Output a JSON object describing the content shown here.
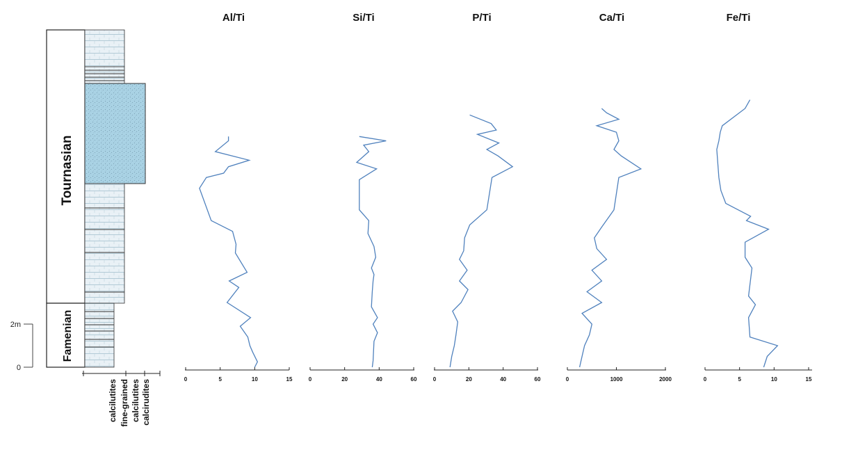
{
  "column": {
    "stages": [
      {
        "name": "Tournasian"
      },
      {
        "name": "Famenian"
      }
    ],
    "scale": {
      "labels": [
        "2m",
        "0"
      ]
    },
    "lithology_labels": [
      "calcilutites",
      "fine-grained calcilutites",
      "calcirudites"
    ],
    "colors": {
      "fill": "#a9d2e4",
      "hatch": "#e8f1f6",
      "line": "#333333"
    }
  },
  "chart_data": [
    {
      "type": "line",
      "title": "Al/Ti",
      "xlim": [
        0,
        15
      ],
      "xticks": [
        "0",
        "5",
        "10",
        "15"
      ],
      "x": [
        10,
        10.4,
        9.7,
        9.3,
        9.0,
        7.9,
        9.4,
        6.0,
        7.7,
        6.3,
        8.9,
        7.2,
        7.3,
        6.8,
        3.7,
        2.0,
        3.0,
        5.5,
        6.2,
        9.2,
        4.3,
        6.2,
        6.2
      ],
      "y_depth_m": [
        0,
        0.25,
        0.7,
        1.0,
        1.4,
        1.9,
        2.3,
        3.0,
        3.7,
        4.0,
        4.4,
        5.3,
        5.7,
        6.3,
        6.8,
        8.3,
        8.8,
        9.0,
        9.3,
        9.6,
        10.0,
        10.5,
        10.7
      ],
      "line_color": "#4f81bd"
    },
    {
      "type": "line",
      "title": "Si/Ti",
      "xlim": [
        0,
        60
      ],
      "xticks": [
        "0",
        "20",
        "40",
        "60"
      ],
      "x": [
        36,
        36.5,
        37,
        39,
        36.5,
        39,
        35.5,
        36,
        36.5,
        37,
        35.5,
        38,
        37,
        33.5,
        34,
        28.5,
        28.5,
        38.5,
        27,
        34,
        31,
        44,
        28.5
      ],
      "y_depth_m": [
        0,
        0.3,
        1.2,
        1.6,
        2.0,
        2.3,
        2.8,
        3.5,
        4.0,
        4.3,
        4.6,
        5.1,
        5.6,
        6.2,
        6.8,
        7.3,
        8.7,
        9.2,
        9.5,
        10.0,
        10.3,
        10.5,
        10.7
      ],
      "line_color": "#4f81bd"
    },
    {
      "type": "line",
      "title": "P/Ti",
      "xlim": [
        0,
        60
      ],
      "xticks": [
        "0",
        "20",
        "40",
        "60"
      ],
      "x": [
        9,
        10,
        11.5,
        12.5,
        13.5,
        10.5,
        15.5,
        19.5,
        14.5,
        19,
        14.5,
        17,
        17.5,
        20.5,
        30.5,
        33.5,
        45.5,
        37,
        30.5,
        37.5,
        25,
        36,
        33,
        20.5
      ],
      "y_depth_m": [
        0,
        0.5,
        1.0,
        1.5,
        2.1,
        2.6,
        3.0,
        3.6,
        4.0,
        4.5,
        5.0,
        5.4,
        6.0,
        6.6,
        7.3,
        8.8,
        9.3,
        9.8,
        10.1,
        10.4,
        10.8,
        11.0,
        11.3,
        11.7
      ],
      "line_color": "#4f81bd"
    },
    {
      "type": "line",
      "title": "Ca/Ti",
      "xlim": [
        0,
        2000
      ],
      "xticks": [
        "0",
        "1000",
        "2000"
      ],
      "x": [
        250,
        300,
        350,
        450,
        500,
        300,
        700,
        400,
        700,
        500,
        800,
        600,
        550,
        700,
        950,
        1050,
        1500,
        1100,
        950,
        1050,
        1000,
        600,
        1050,
        800,
        700
      ],
      "y_depth_m": [
        0,
        0.5,
        1.0,
        1.5,
        2.0,
        2.5,
        3.0,
        3.5,
        4.0,
        4.5,
        5.0,
        5.5,
        6.0,
        6.5,
        7.3,
        8.8,
        9.2,
        9.8,
        10.1,
        10.5,
        10.9,
        11.2,
        11.5,
        11.8,
        12.0
      ],
      "line_color": "#4f81bd"
    },
    {
      "type": "line",
      "title": "Fe/Ti",
      "xlim": [
        0,
        15
      ],
      "xticks": [
        "0",
        "5",
        "10",
        "15"
      ],
      "x": [
        8.5,
        9,
        10.5,
        6.5,
        6.3,
        7.3,
        6.3,
        6.8,
        5.8,
        5.8,
        9.2,
        6.0,
        6.6,
        3.0,
        2.3,
        2.0,
        1.7,
        2.0,
        2.2,
        2.5,
        5.8,
        6.5
      ],
      "y_depth_m": [
        0,
        0.5,
        1.0,
        1.4,
        2.3,
        2.9,
        3.3,
        4.6,
        5.1,
        5.8,
        6.4,
        6.8,
        7.0,
        7.6,
        8.2,
        8.8,
        10.1,
        10.5,
        10.9,
        11.2,
        12.0,
        12.4
      ],
      "line_color": "#4f81bd"
    }
  ]
}
